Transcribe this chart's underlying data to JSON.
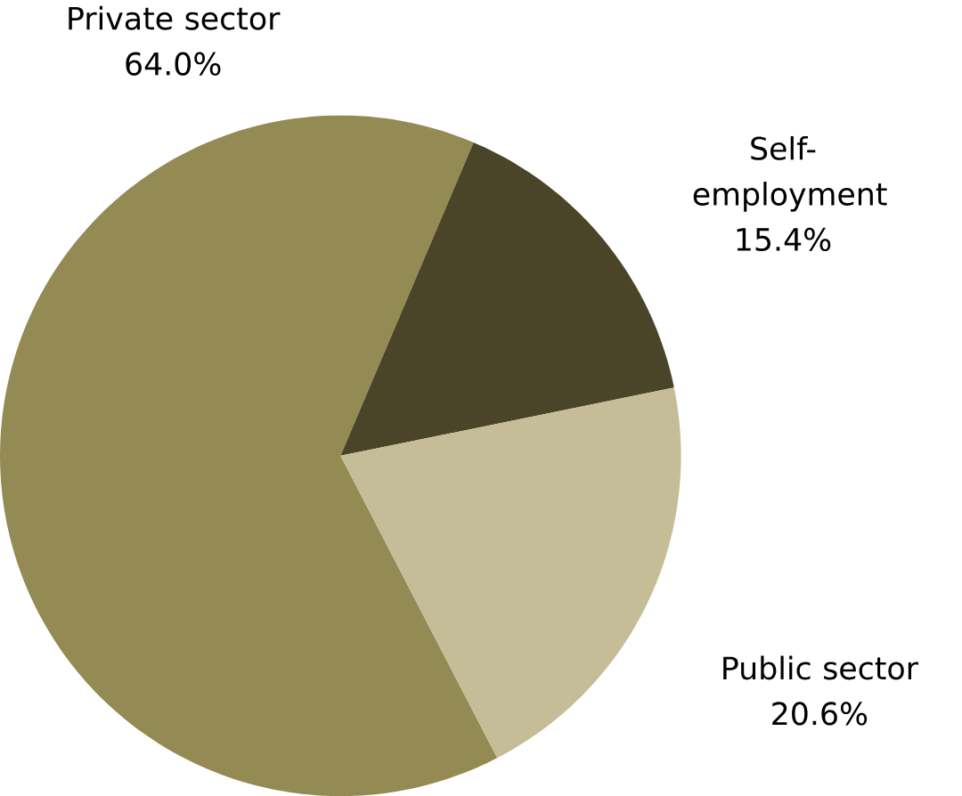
{
  "chart_data": {
    "type": "pie",
    "categories": [
      "Private sector",
      "Self-employment",
      "Public sector"
    ],
    "values": [
      64.0,
      15.4,
      20.6
    ],
    "colors": [
      "#948a54",
      "#4a4529",
      "#c4bd97"
    ],
    "value_labels": [
      "64.0%",
      "15.4%",
      "20.6%"
    ]
  }
}
